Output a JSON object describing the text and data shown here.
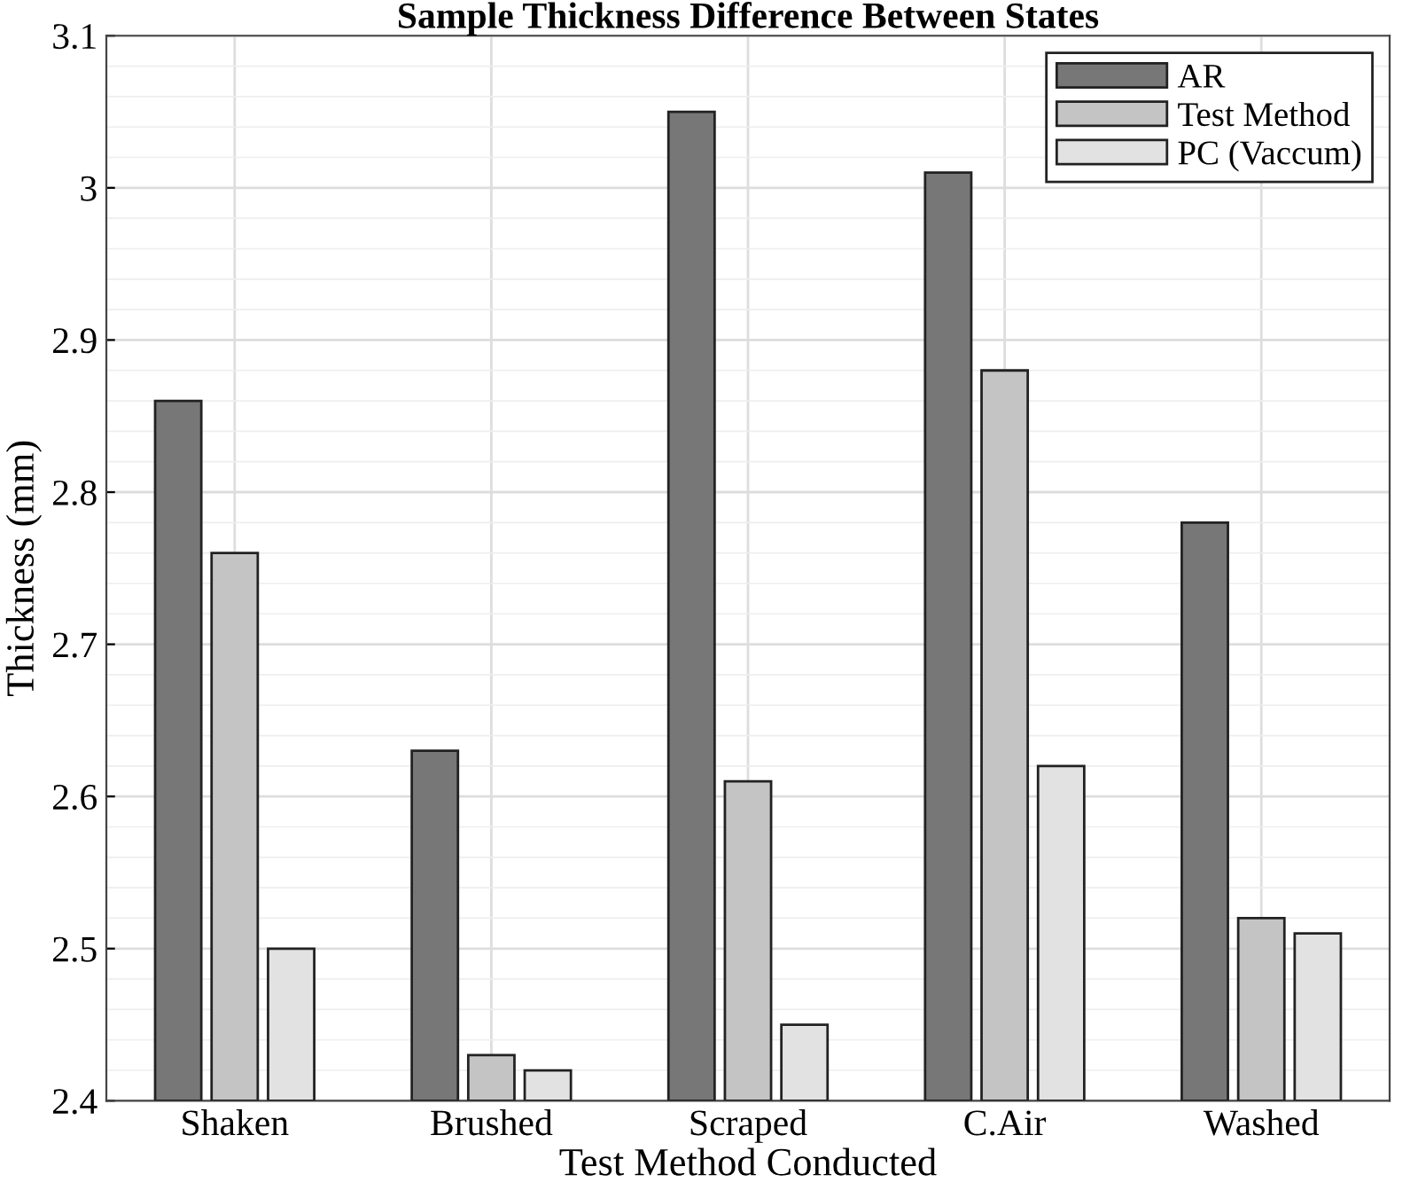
{
  "chart_data": {
    "type": "bar",
    "title": "Sample Thickness Difference Between States",
    "xlabel": "Test Method Conducted",
    "ylabel": "Thickness (mm)",
    "categories": [
      "Shaken",
      "Brushed",
      "Scraped",
      "C.Air",
      "Washed"
    ],
    "series": [
      {
        "name": "AR",
        "color": "#777777",
        "values": [
          2.86,
          2.63,
          3.05,
          3.01,
          2.78
        ]
      },
      {
        "name": "Test Method",
        "color": "#c4c4c4",
        "values": [
          2.76,
          2.43,
          2.61,
          2.88,
          2.52
        ]
      },
      {
        "name": "PC (Vaccum)",
        "color": "#e2e2e2",
        "values": [
          2.5,
          2.42,
          2.45,
          2.62,
          2.51
        ]
      }
    ],
    "ylim": [
      2.4,
      3.1
    ],
    "yticks": [
      2.4,
      2.5,
      2.6,
      2.7,
      2.8,
      2.9,
      3,
      3.1
    ],
    "grid": true,
    "legend": "top right"
  }
}
